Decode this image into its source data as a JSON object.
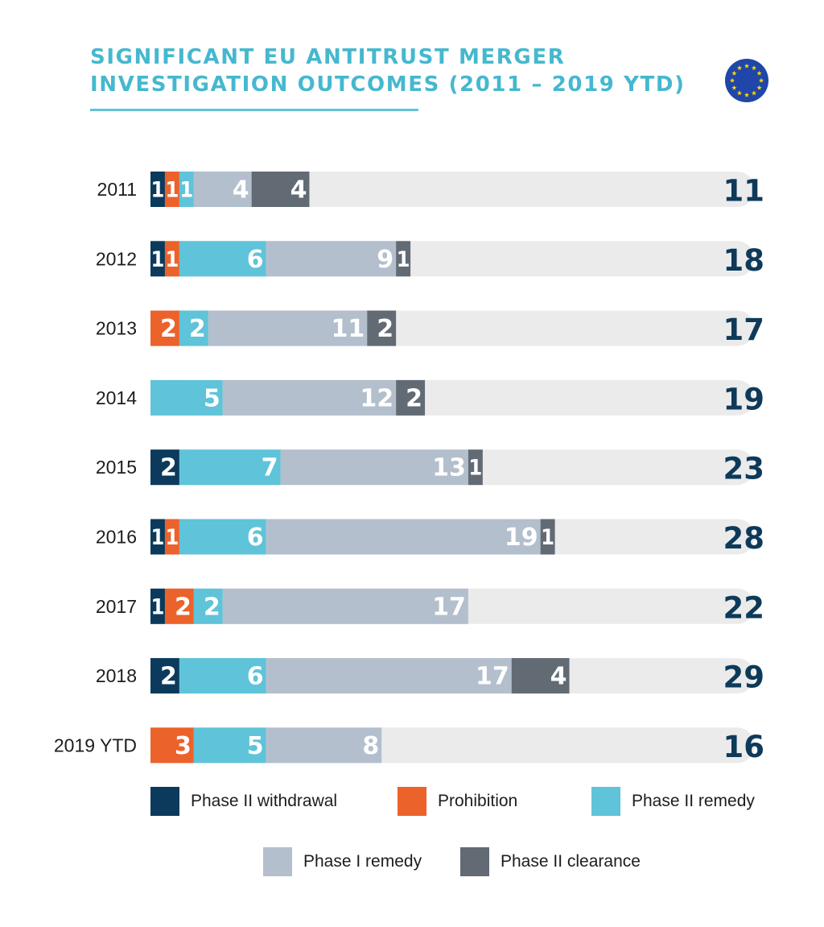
{
  "header": {
    "title_line1": "SIGNIFICANT EU ANTITRUST MERGER",
    "title_line2": "INVESTIGATION OUTCOMES (2011 – 2019 YTD)"
  },
  "icons": {
    "flag": "eu-flag-icon"
  },
  "colors": {
    "phase_ii_withdrawal": "#0b3a5c",
    "prohibition": "#ec622b",
    "phase_ii_remedy": "#5fc3d9",
    "phase_i_remedy": "#b3bfcd",
    "phase_ii_clearance": "#626a74",
    "track": "#ebebeb",
    "total": "#0e3a5a",
    "title": "#45b8cf"
  },
  "chart_data": {
    "type": "bar",
    "orientation": "horizontal",
    "stacked": true,
    "categories": [
      "2011",
      "2012",
      "2013",
      "2014",
      "2015",
      "2016",
      "2017",
      "2018",
      "2019 YTD"
    ],
    "series": [
      {
        "name": "Phase II withdrawal",
        "values": [
          1,
          1,
          0,
          0,
          2,
          1,
          1,
          2,
          0
        ]
      },
      {
        "name": "Prohibition",
        "values": [
          1,
          1,
          2,
          0,
          0,
          1,
          2,
          0,
          3
        ]
      },
      {
        "name": "Phase II remedy",
        "values": [
          1,
          6,
          2,
          5,
          7,
          6,
          2,
          6,
          5
        ]
      },
      {
        "name": "Phase I remedy",
        "values": [
          4,
          9,
          11,
          12,
          13,
          19,
          17,
          17,
          8
        ]
      },
      {
        "name": "Phase II clearance",
        "values": [
          4,
          1,
          2,
          2,
          1,
          1,
          0,
          4,
          0
        ]
      }
    ],
    "totals": [
      11,
      18,
      17,
      19,
      23,
      28,
      22,
      29,
      16
    ],
    "legend": {
      "position": "bottom"
    },
    "grid": false
  }
}
